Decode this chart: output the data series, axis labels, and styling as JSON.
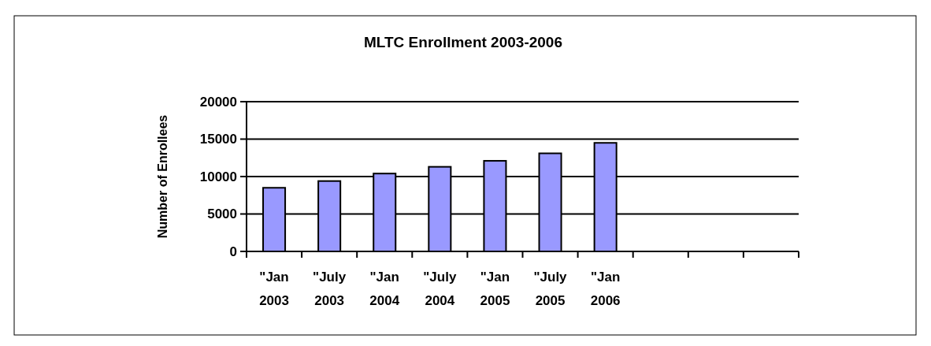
{
  "chart_data": {
    "type": "bar",
    "title": "MLTC Enrollment 2003-2006",
    "ylabel": "Number of Enrollees",
    "categories": [
      "\"Jan 2003",
      "\"July 2003",
      "\"Jan 2004",
      "\"July 2004",
      "\"Jan 2005",
      "\"July 2005",
      "\"Jan 2006",
      null,
      null,
      null
    ],
    "values": [
      8500,
      9400,
      10400,
      11300,
      12100,
      13100,
      14500,
      null,
      null,
      null
    ],
    "color": "#9999ff",
    "ylim": [
      0,
      20000
    ],
    "yticks": [
      0,
      5000,
      10000,
      15000,
      20000
    ],
    "grid": "y"
  }
}
